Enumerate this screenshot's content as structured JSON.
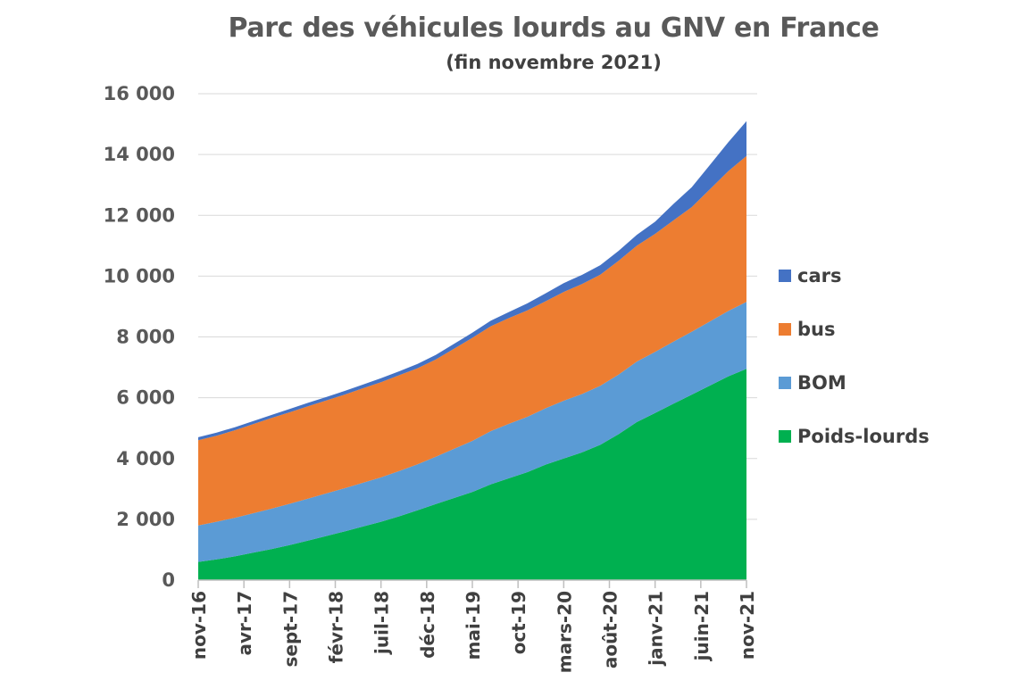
{
  "chart_data": {
    "type": "area",
    "stacked": true,
    "title": "Parc des véhicules lourds au GNV en France",
    "subtitle": "(fin novembre 2021)",
    "xlabel": "",
    "ylabel": "",
    "ylim": [
      0,
      16000
    ],
    "y_ticks": [
      0,
      2000,
      4000,
      6000,
      8000,
      10000,
      12000,
      14000,
      16000
    ],
    "y_tick_labels": [
      "0",
      "2 000",
      "4 000",
      "6 000",
      "8 000",
      "10 000",
      "12 000",
      "14 000",
      "16 000"
    ],
    "x_tick_labels": [
      "nov-16",
      "avr-17",
      "sept-17",
      "févr-18",
      "juil-18",
      "déc-18",
      "mai-19",
      "oct-19",
      "mars-20",
      "août-20",
      "janv-21",
      "juin-21",
      "nov-21"
    ],
    "x": [
      "nov-16",
      "janv-17",
      "mars-17",
      "mai-17",
      "juil-17",
      "sept-17",
      "nov-17",
      "janv-18",
      "mars-18",
      "mai-18",
      "juil-18",
      "sept-18",
      "nov-18",
      "janv-19",
      "mars-19",
      "mai-19",
      "juil-19",
      "sept-19",
      "nov-19",
      "janv-20",
      "mars-20",
      "mai-20",
      "juil-20",
      "sept-20",
      "nov-20",
      "janv-21",
      "mars-21",
      "mai-21",
      "juil-21",
      "sept-21",
      "nov-21"
    ],
    "grid": true,
    "legend_position": "right",
    "series": [
      {
        "name": "Poids-lourds",
        "color": "#00B050",
        "values": [
          600,
          680,
          780,
          900,
          1020,
          1150,
          1300,
          1450,
          1600,
          1760,
          1920,
          2100,
          2300,
          2500,
          2700,
          2900,
          3150,
          3350,
          3550,
          3800,
          4000,
          4200,
          4450,
          4800,
          5200,
          5500,
          5800,
          6100,
          6400,
          6700,
          6950
        ]
      },
      {
        "name": "BOM",
        "color": "#5B9BD5",
        "values": [
          1200,
          1240,
          1270,
          1300,
          1330,
          1360,
          1380,
          1400,
          1420,
          1440,
          1460,
          1490,
          1510,
          1560,
          1620,
          1680,
          1750,
          1790,
          1820,
          1850,
          1900,
          1920,
          1940,
          1960,
          1990,
          2010,
          2040,
          2070,
          2110,
          2150,
          2200
        ]
      },
      {
        "name": "bus",
        "color": "#ED7D31",
        "values": [
          2800,
          2830,
          2880,
          2930,
          2980,
          3010,
          3040,
          3060,
          3080,
          3110,
          3130,
          3150,
          3160,
          3200,
          3290,
          3390,
          3450,
          3480,
          3500,
          3520,
          3580,
          3620,
          3660,
          3740,
          3810,
          3880,
          3990,
          4100,
          4350,
          4600,
          4800
        ]
      },
      {
        "name": "cars",
        "color": "#4472C4",
        "values": [
          100,
          100,
          100,
          100,
          100,
          110,
          110,
          110,
          120,
          120,
          130,
          130,
          140,
          150,
          160,
          170,
          180,
          200,
          230,
          260,
          290,
          300,
          310,
          330,
          360,
          400,
          540,
          650,
          800,
          950,
          1150
        ]
      }
    ]
  }
}
